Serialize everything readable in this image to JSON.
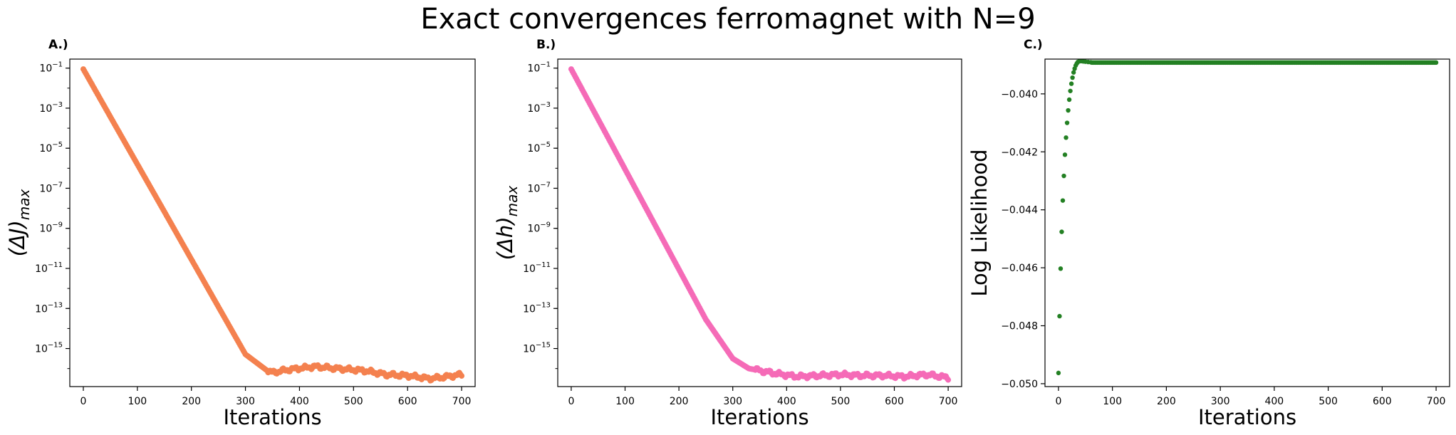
{
  "figure": {
    "title": "Exact convergences ferromagnet with N=9"
  },
  "chart_data": [
    {
      "panel_label": "A.)",
      "type": "scatter",
      "color": "#F4814F",
      "xlabel": "Iterations",
      "ylabel": "(ΔJ)",
      "ylabel_sub": "max",
      "yscale": "log",
      "xlim": [
        -25,
        725
      ],
      "ylim_log10": [
        -16.9,
        -0.55
      ],
      "xticks": [
        0,
        100,
        200,
        300,
        400,
        500,
        600,
        700
      ],
      "yticks_exp": [
        -1,
        -3,
        -5,
        -7,
        -9,
        -11,
        -13,
        -15
      ],
      "series": {
        "x_start": 0,
        "x_end": 700,
        "x_step": 2,
        "y_log10_anchors": [
          [
            0,
            -1.05
          ],
          [
            50,
            -3.43
          ],
          [
            100,
            -5.8
          ],
          [
            150,
            -8.17
          ],
          [
            200,
            -10.55
          ],
          [
            250,
            -12.92
          ],
          [
            300,
            -15.29
          ],
          [
            340,
            -16.1
          ],
          [
            350,
            -16.2
          ],
          [
            380,
            -16.05
          ],
          [
            430,
            -15.9
          ],
          [
            470,
            -16.0
          ],
          [
            520,
            -16.1
          ],
          [
            560,
            -16.3
          ],
          [
            600,
            -16.35
          ],
          [
            640,
            -16.5
          ],
          [
            660,
            -16.45
          ],
          [
            700,
            -16.3
          ]
        ]
      }
    },
    {
      "panel_label": "B.)",
      "type": "scatter",
      "color": "#F56BB7",
      "xlabel": "Iterations",
      "ylabel": "(Δh)",
      "ylabel_sub": "max",
      "yscale": "log",
      "xlim": [
        -25,
        725
      ],
      "ylim_log10": [
        -16.9,
        -0.55
      ],
      "xticks": [
        0,
        100,
        200,
        300,
        400,
        500,
        600,
        700
      ],
      "yticks_exp": [
        -1,
        -3,
        -5,
        -7,
        -9,
        -11,
        -13,
        -15
      ],
      "series": {
        "x_start": 0,
        "x_end": 700,
        "x_step": 2,
        "y_log10_anchors": [
          [
            0,
            -1.05
          ],
          [
            50,
            -3.55
          ],
          [
            100,
            -6.05
          ],
          [
            150,
            -8.55
          ],
          [
            200,
            -11.05
          ],
          [
            250,
            -13.55
          ],
          [
            300,
            -15.5
          ],
          [
            330,
            -16.0
          ],
          [
            350,
            -16.1
          ],
          [
            380,
            -16.25
          ],
          [
            420,
            -16.4
          ],
          [
            460,
            -16.35
          ],
          [
            500,
            -16.3
          ],
          [
            540,
            -16.35
          ],
          [
            580,
            -16.35
          ],
          [
            620,
            -16.4
          ],
          [
            660,
            -16.3
          ],
          [
            700,
            -16.45
          ]
        ]
      }
    },
    {
      "panel_label": "C.)",
      "type": "scatter",
      "color": "#238023",
      "xlabel": "Iterations",
      "ylabel": "Log Likelihood",
      "yscale": "linear",
      "xlim": [
        -25,
        725
      ],
      "ylim": [
        -0.0501,
        -0.0388
      ],
      "xticks": [
        0,
        100,
        200,
        300,
        400,
        500,
        600,
        700
      ],
      "yticks": [
        -0.05,
        -0.048,
        -0.046,
        -0.044,
        -0.042,
        -0.04
      ],
      "ytick_labels": [
        "−0.050",
        "−0.048",
        "−0.046",
        "−0.044",
        "−0.042",
        "−0.040"
      ],
      "series": {
        "points": [
          [
            0,
            -0.04963
          ],
          [
            2,
            -0.04767
          ],
          [
            4,
            -0.04603
          ],
          [
            6,
            -0.04476
          ],
          [
            8,
            -0.04368
          ],
          [
            10,
            -0.04283
          ],
          [
            12,
            -0.0421
          ],
          [
            14,
            -0.04151
          ],
          [
            16,
            -0.041
          ],
          [
            18,
            -0.04057
          ],
          [
            20,
            -0.0402
          ],
          [
            22,
            -0.0399
          ],
          [
            24,
            -0.03965
          ],
          [
            26,
            -0.03944
          ],
          [
            28,
            -0.03926
          ],
          [
            30,
            -0.03913
          ],
          [
            32,
            -0.03902
          ],
          [
            34,
            -0.03895
          ],
          [
            36,
            -0.0389
          ],
          [
            38,
            -0.03888
          ],
          [
            40,
            -0.03887
          ],
          [
            43,
            -0.03887
          ],
          [
            46,
            -0.03888
          ],
          [
            50,
            -0.03889
          ],
          [
            55,
            -0.0389
          ],
          [
            60,
            -0.03891
          ]
        ],
        "plateau_y": -0.03892,
        "plateau_from": 62,
        "plateau_to": 700,
        "plateau_step": 2
      }
    }
  ]
}
